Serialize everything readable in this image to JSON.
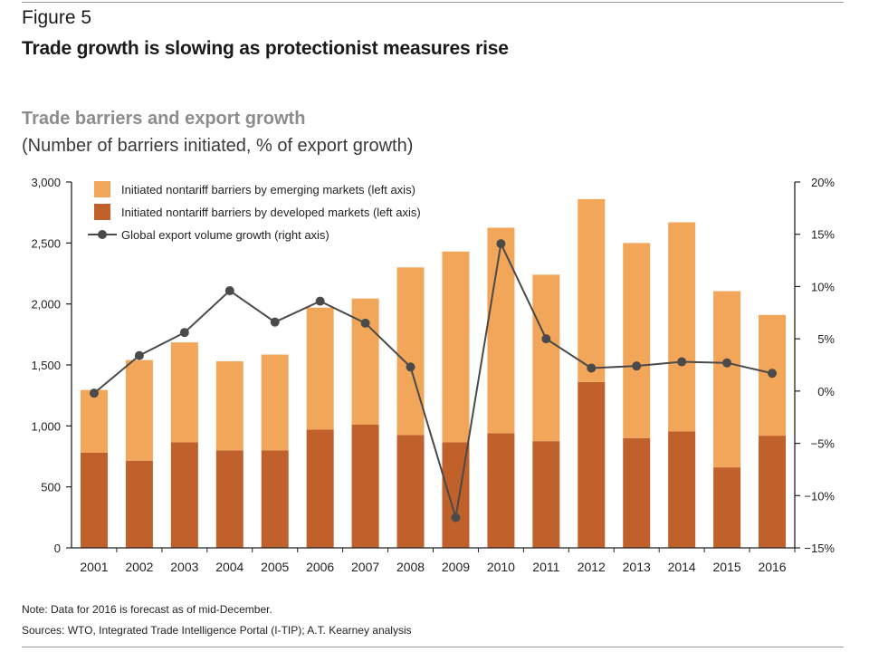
{
  "figure_label": "Figure 5",
  "figure_title": "Trade growth is slowing as protectionist measures rise",
  "note": "Note: Data for 2016 is forecast as of mid-December.",
  "sources": "Sources: WTO, Integrated Trade Intelligence Portal (I-TIP); A.T. Kearney analysis",
  "colors": {
    "emerging": "#F2A65A",
    "developed": "#C0602A",
    "line": "#4a4a4a",
    "axis": "#222222"
  },
  "chart_data": {
    "type": "bar",
    "title": "Trade barriers and export growth",
    "subtitle": "(Number of barriers initiated, % of export growth)",
    "stacked": true,
    "categories": [
      "2001",
      "2002",
      "2003",
      "2004",
      "2005",
      "2006",
      "2007",
      "2008",
      "2009",
      "2010",
      "2011",
      "2012",
      "2013",
      "2014",
      "2015",
      "2016"
    ],
    "series": [
      {
        "name": "Initiated nontariff barriers by developed markets (left axis)",
        "axis": "left",
        "kind": "bar",
        "values": [
          780,
          715,
          865,
          800,
          800,
          970,
          1010,
          925,
          865,
          940,
          875,
          1360,
          900,
          955,
          660,
          920
        ]
      },
      {
        "name": "Initiated nontariff barriers by emerging markets (left axis)",
        "axis": "left",
        "kind": "bar",
        "values": [
          515,
          825,
          820,
          730,
          785,
          1000,
          1035,
          1375,
          1565,
          1685,
          1365,
          1500,
          1600,
          1715,
          1445,
          990
        ]
      },
      {
        "name": "Global export volume growth (right axis)",
        "axis": "right",
        "kind": "line",
        "values": [
          -0.2,
          3.4,
          5.6,
          9.6,
          6.6,
          8.6,
          6.5,
          2.3,
          -12.1,
          14.1,
          5.0,
          2.2,
          2.4,
          2.8,
          2.7,
          1.7
        ]
      }
    ],
    "legend": [
      "Initiated nontariff barriers by emerging markets (left axis)",
      "Initiated nontariff barriers by developed markets (left axis)",
      "Global export volume growth (right axis)"
    ],
    "legend_position": "top-left",
    "y_left": {
      "lim": [
        0,
        3000
      ],
      "ticks": [
        0,
        500,
        1000,
        1500,
        2000,
        2500,
        3000
      ],
      "tick_labels": [
        "0",
        "500",
        "1,000",
        "1,500",
        "2,000",
        "2,500",
        "3,000"
      ]
    },
    "y_right": {
      "lim": [
        -15,
        20
      ],
      "ticks": [
        -15,
        -10,
        -5,
        0,
        5,
        10,
        15,
        20
      ],
      "tick_labels": [
        "−15%",
        "−10%",
        "−5%",
        "0%",
        "5%",
        "10%",
        "15%",
        "20%"
      ]
    },
    "grid": false
  }
}
